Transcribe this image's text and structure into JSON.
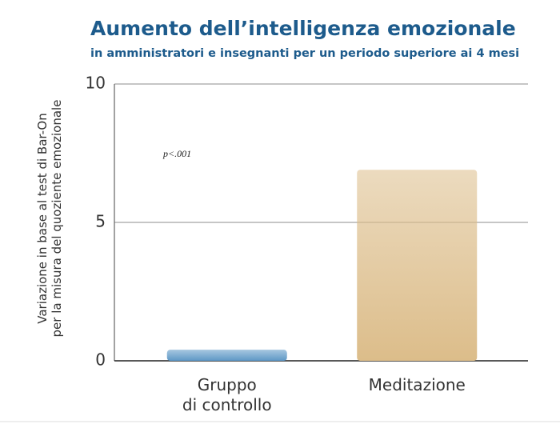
{
  "chart_data": {
    "type": "bar",
    "title": "Aumento dell’intelligenza emozionale",
    "subtitle": "in amministratori e insegnanti per un periodo superiore ai 4 mesi",
    "y_label": "Variazione in base al test di Bar-On\nper la misura del quoziente emozionale",
    "annotation": "p<.001",
    "categories": [
      "Gruppo\ndi controllo",
      "Meditazione"
    ],
    "values": [
      0.4,
      6.9
    ],
    "colors": [
      "#5e98c6",
      "#dcbd8a"
    ],
    "ylim": [
      0,
      10
    ],
    "yticks": [
      0,
      5,
      10
    ],
    "grid": true
  }
}
